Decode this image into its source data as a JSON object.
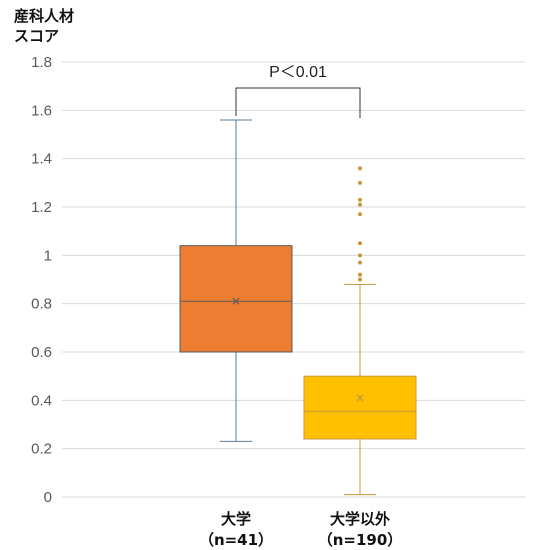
{
  "chart_data": {
    "type": "box",
    "ylabel_lines": [
      "産科人材",
      "スコア"
    ],
    "ylim": [
      0,
      1.8
    ],
    "yticks": [
      0,
      0.2,
      0.4,
      0.6,
      0.8,
      1,
      1.2,
      1.4,
      1.6,
      1.8
    ],
    "ytick_labels": [
      "0",
      "0.2",
      "0.4",
      "0.6",
      "0.8",
      "1",
      "1.2",
      "1.4",
      "1.6",
      "1.8"
    ],
    "grid": true,
    "annotation": "P＜0.01",
    "series": [
      {
        "category": "大学",
        "n_label": "（n=41）",
        "color": "#ED7D31",
        "stroke": "#5A5A5A",
        "whisker_color": "#5B7A99",
        "min": 0.23,
        "q1": 0.6,
        "median": 0.81,
        "mean": 0.81,
        "q3": 1.04,
        "max": 1.56,
        "outliers": []
      },
      {
        "category": "大学以外",
        "n_label": "（n=190）",
        "color": "#FFC000",
        "stroke": "#C8963C",
        "whisker_color": "#C8963C",
        "min": 0.01,
        "q1": 0.24,
        "median": 0.355,
        "mean": 0.41,
        "q3": 0.5,
        "max": 0.88,
        "outliers": [
          0.9,
          0.92,
          0.97,
          1.0,
          1.05,
          1.17,
          1.21,
          1.23,
          1.3,
          1.36
        ]
      }
    ]
  }
}
